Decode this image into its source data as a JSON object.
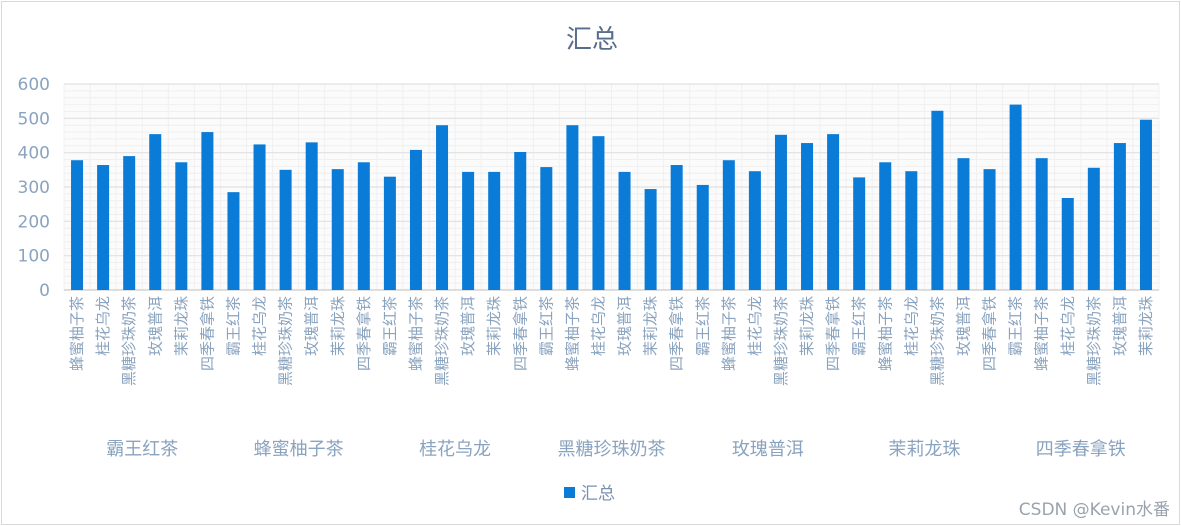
{
  "chart_data": {
    "type": "bar",
    "title": "汇总",
    "ylim": [
      0,
      600
    ],
    "yticks": [
      0,
      100,
      200,
      300,
      400,
      500,
      600
    ],
    "grid": true,
    "legend_position": "bottom",
    "color": "#0a7bd6",
    "groups": [
      {
        "name": "霸王红茶",
        "categories": [
          "蜂蜜柚子茶",
          "桂花乌龙",
          "黑糖珍珠奶茶",
          "玫瑰普洱",
          "茉莉龙珠",
          "四季春拿铁"
        ]
      },
      {
        "name": "蜂蜜柚子茶",
        "categories": [
          "霸王红茶",
          "桂花乌龙",
          "黑糖珍珠奶茶",
          "玫瑰普洱",
          "茉莉龙珠",
          "四季春拿铁"
        ]
      },
      {
        "name": "桂花乌龙",
        "categories": [
          "霸王红茶",
          "蜂蜜柚子茶",
          "黑糖珍珠奶茶",
          "玫瑰普洱",
          "茉莉龙珠",
          "四季春拿铁"
        ]
      },
      {
        "name": "黑糖珍珠奶茶",
        "categories": [
          "霸王红茶",
          "蜂蜜柚子茶",
          "桂花乌龙",
          "玫瑰普洱",
          "茉莉龙珠",
          "四季春拿铁"
        ]
      },
      {
        "name": "玫瑰普洱",
        "categories": [
          "霸王红茶",
          "蜂蜜柚子茶",
          "桂花乌龙",
          "黑糖珍珠奶茶",
          "茉莉龙珠",
          "四季春拿铁"
        ]
      },
      {
        "name": "茉莉龙珠",
        "categories": [
          "霸王红茶",
          "蜂蜜柚子茶",
          "桂花乌龙",
          "黑糖珍珠奶茶",
          "玫瑰普洱",
          "四季春拿铁"
        ]
      },
      {
        "name": "四季春拿铁",
        "categories": [
          "霸王红茶",
          "蜂蜜柚子茶",
          "桂花乌龙",
          "黑糖珍珠奶茶",
          "玫瑰普洱",
          "茉莉龙珠"
        ]
      }
    ],
    "series": [
      {
        "name": "汇总",
        "values": [
          378,
          364,
          390,
          454,
          372,
          460,
          285,
          424,
          350,
          430,
          352,
          372,
          330,
          408,
          480,
          344,
          344,
          402,
          358,
          480,
          448,
          344,
          294,
          364,
          306,
          378,
          346,
          452,
          428,
          454,
          328,
          372,
          346,
          522,
          384,
          352,
          540,
          384,
          268,
          356,
          428,
          496
        ]
      }
    ]
  },
  "watermark": "CSDN @Kevin水番"
}
